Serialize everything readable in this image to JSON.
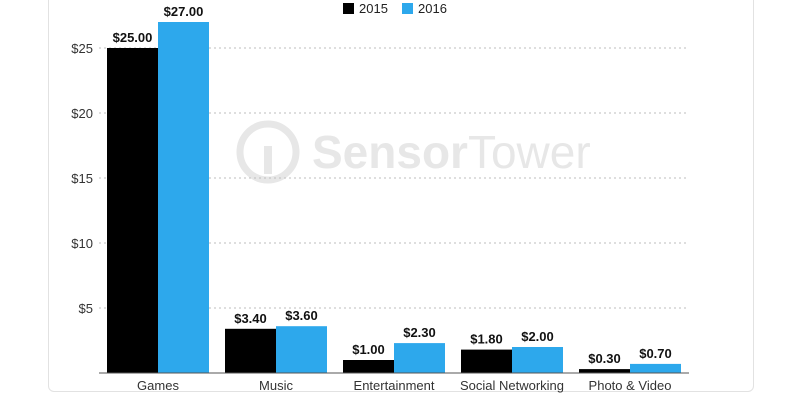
{
  "watermark": {
    "part1": "Sensor",
    "part2": "Tower"
  },
  "chart_data": {
    "type": "bar",
    "categories": [
      "Games",
      "Music",
      "Entertainment",
      "Social Networking",
      "Photo & Video"
    ],
    "series": [
      {
        "name": "2015",
        "color": "#000000",
        "values": [
          25.0,
          3.4,
          1.0,
          1.8,
          0.3
        ],
        "labels": [
          "$25.00",
          "$3.40",
          "$1.00",
          "$1.80",
          "$0.30"
        ]
      },
      {
        "name": "2016",
        "color": "#2da8ec",
        "values": [
          27.0,
          3.6,
          2.3,
          2.0,
          0.7
        ],
        "labels": [
          "$27.00",
          "$3.60",
          "$2.30",
          "$2.00",
          "$0.70"
        ]
      }
    ],
    "yticks": [
      5,
      10,
      15,
      20,
      25
    ],
    "ytick_labels": [
      "$5",
      "$10",
      "$15",
      "$20",
      "$25"
    ],
    "ylim": [
      0,
      28
    ],
    "grid": true,
    "legend_position": "top-center"
  }
}
